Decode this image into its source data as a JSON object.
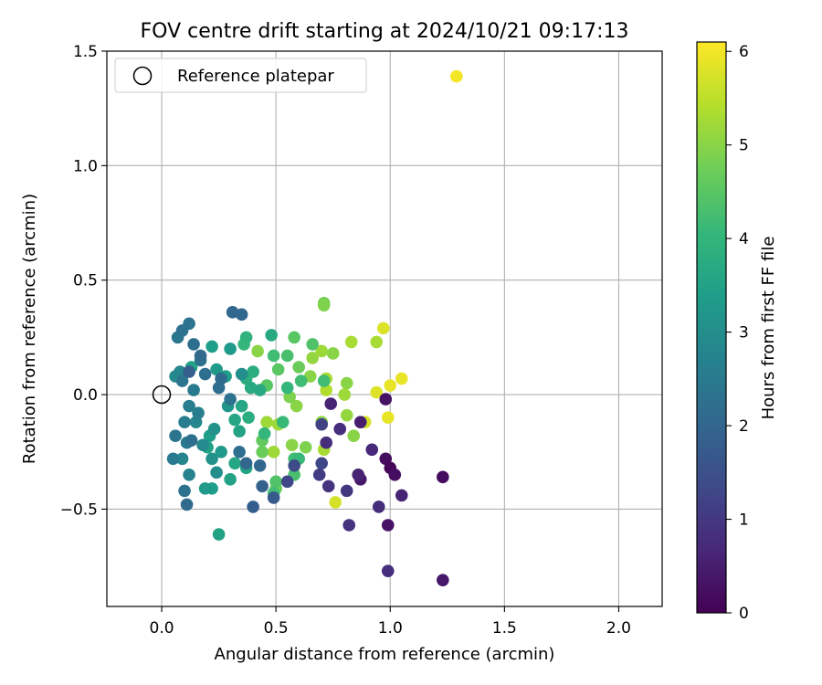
{
  "chart_data": {
    "type": "scatter",
    "title": "FOV centre drift starting at 2024/10/21 09:17:13",
    "xlabel": "Angular distance from reference (arcmin)",
    "ylabel": "Rotation from reference (arcmin)",
    "xlim": [
      -0.24,
      2.19
    ],
    "ylim": [
      -0.925,
      1.5
    ],
    "xticks": [
      0.0,
      0.5,
      1.0,
      1.5,
      2.0
    ],
    "xtick_labels": [
      "0.0",
      "0.5",
      "1.0",
      "1.5",
      "2.0"
    ],
    "yticks": [
      -0.5,
      0.0,
      0.5,
      1.0,
      1.5
    ],
    "ytick_labels": [
      "−0.5",
      "0.0",
      "0.5",
      "1.0",
      "1.5"
    ],
    "grid": true,
    "legend": {
      "placement": "upper-left",
      "entries": [
        "Reference platepar"
      ]
    },
    "reference_point": {
      "x": 0.0,
      "y": 0.0
    },
    "colorbar": {
      "label": "Hours from first FF file",
      "colormap": "viridis",
      "range": [
        0,
        6.1
      ],
      "ticks": [
        0,
        1,
        2,
        3,
        4,
        5,
        6
      ],
      "tick_labels": [
        "0",
        "1",
        "2",
        "3",
        "4",
        "5",
        "6"
      ],
      "stops": [
        "#440154",
        "#482878",
        "#3e4a89",
        "#31688e",
        "#26828e",
        "#1f9e89",
        "#35b779",
        "#6ece58",
        "#b5de2b",
        "#fde725"
      ]
    },
    "points": [
      [
        1.29,
        1.39,
        6.0
      ],
      [
        0.97,
        0.29,
        5.8
      ],
      [
        1.05,
        0.07,
        5.9
      ],
      [
        1.0,
        0.04,
        5.9
      ],
      [
        0.94,
        0.01,
        5.8
      ],
      [
        0.99,
        -0.1,
        5.9
      ],
      [
        0.89,
        -0.12,
        5.7
      ],
      [
        0.86,
        -0.35,
        5.8
      ],
      [
        0.76,
        -0.47,
        5.7
      ],
      [
        0.94,
        0.23,
        5.3
      ],
      [
        0.83,
        0.23,
        5.3
      ],
      [
        0.72,
        0.02,
        5.4
      ],
      [
        0.72,
        0.07,
        5.3
      ],
      [
        0.7,
        0.19,
        5.2
      ],
      [
        0.66,
        0.16,
        5.1
      ],
      [
        0.71,
        0.4,
        4.8
      ],
      [
        0.71,
        0.39,
        4.9
      ],
      [
        0.75,
        0.18,
        5.0
      ],
      [
        0.65,
        0.08,
        5.0
      ],
      [
        0.81,
        0.05,
        5.0
      ],
      [
        0.8,
        0.0,
        5.2
      ],
      [
        0.81,
        -0.09,
        5.1
      ],
      [
        0.7,
        -0.12,
        5.0
      ],
      [
        0.84,
        -0.18,
        5.0
      ],
      [
        0.71,
        -0.24,
        5.3
      ],
      [
        0.59,
        -0.05,
        5.0
      ],
      [
        0.56,
        -0.01,
        4.9
      ],
      [
        0.51,
        -0.13,
        5.2
      ],
      [
        0.57,
        -0.22,
        5.0
      ],
      [
        0.63,
        -0.23,
        4.9
      ],
      [
        0.49,
        -0.25,
        5.2
      ],
      [
        0.46,
        -0.12,
        5.2
      ],
      [
        0.42,
        0.19,
        5.0
      ],
      [
        0.44,
        -0.25,
        4.7
      ],
      [
        0.44,
        -0.2,
        4.6
      ],
      [
        0.5,
        -0.41,
        4.7
      ],
      [
        0.51,
        0.11,
        4.5
      ],
      [
        0.6,
        0.12,
        4.7
      ],
      [
        0.58,
        0.25,
        4.5
      ],
      [
        0.66,
        0.22,
        4.4
      ],
      [
        0.71,
        0.06,
        4.2
      ],
      [
        0.61,
        0.06,
        4.2
      ],
      [
        0.55,
        0.17,
        4.3
      ],
      [
        0.46,
        0.04,
        4.5
      ],
      [
        0.49,
        0.17,
        4.2
      ],
      [
        0.5,
        -0.38,
        4.4
      ],
      [
        0.58,
        -0.35,
        4.3
      ],
      [
        0.58,
        -0.28,
        4.2
      ],
      [
        0.6,
        -0.28,
        4.1
      ],
      [
        0.49,
        -0.43,
        4.2
      ],
      [
        0.55,
        0.03,
        4.0
      ],
      [
        0.53,
        -0.12,
        4.1
      ],
      [
        0.45,
        -0.17,
        4.0
      ],
      [
        0.37,
        0.25,
        3.9
      ],
      [
        0.36,
        0.22,
        4.0
      ],
      [
        0.37,
        0.07,
        3.8
      ],
      [
        0.39,
        0.03,
        3.7
      ],
      [
        0.4,
        0.1,
        3.8
      ],
      [
        0.48,
        0.26,
        3.7
      ],
      [
        0.43,
        0.02,
        3.7
      ],
      [
        0.35,
        -0.05,
        3.6
      ],
      [
        0.38,
        -0.1,
        3.8
      ],
      [
        0.32,
        -0.11,
        3.6
      ],
      [
        0.34,
        -0.16,
        3.5
      ],
      [
        0.32,
        -0.3,
        3.6
      ],
      [
        0.37,
        -0.32,
        3.5
      ],
      [
        0.3,
        -0.37,
        3.5
      ],
      [
        0.25,
        -0.61,
        3.5
      ],
      [
        0.22,
        -0.41,
        3.4
      ],
      [
        0.19,
        -0.41,
        3.3
      ],
      [
        0.21,
        -0.18,
        3.4
      ],
      [
        0.2,
        -0.23,
        3.5
      ],
      [
        0.13,
        0.12,
        3.5
      ],
      [
        0.22,
        0.21,
        3.4
      ],
      [
        0.24,
        0.11,
        3.3
      ],
      [
        0.29,
        -0.05,
        3.2
      ],
      [
        0.28,
        0.08,
        3.4
      ],
      [
        0.3,
        0.2,
        3.3
      ],
      [
        0.35,
        0.09,
        3.0
      ],
      [
        0.23,
        -0.15,
        3.1
      ],
      [
        0.26,
        -0.25,
        3.3
      ],
      [
        0.22,
        -0.28,
        3.1
      ],
      [
        0.24,
        -0.34,
        3.0
      ],
      [
        0.18,
        -0.22,
        2.9
      ],
      [
        0.15,
        -0.12,
        2.8
      ],
      [
        0.12,
        -0.35,
        2.7
      ],
      [
        0.09,
        -0.28,
        2.8
      ],
      [
        0.06,
        0.08,
        2.9
      ],
      [
        0.08,
        0.1,
        2.8
      ],
      [
        0.1,
        -0.12,
        2.6
      ],
      [
        0.12,
        -0.05,
        2.6
      ],
      [
        0.14,
        0.02,
        2.5
      ],
      [
        0.16,
        -0.08,
        2.6
      ],
      [
        0.11,
        -0.21,
        2.5
      ],
      [
        0.05,
        -0.28,
        2.5
      ],
      [
        0.06,
        -0.18,
        2.4
      ],
      [
        0.09,
        0.06,
        2.4
      ],
      [
        0.07,
        0.25,
        2.4
      ],
      [
        0.09,
        0.28,
        2.3
      ],
      [
        0.12,
        0.31,
        2.3
      ],
      [
        0.14,
        0.22,
        2.2
      ],
      [
        0.17,
        0.15,
        2.3
      ],
      [
        0.17,
        0.17,
        2.1
      ],
      [
        0.19,
        0.09,
        2.2
      ],
      [
        0.26,
        0.07,
        2.1
      ],
      [
        0.31,
        0.36,
        2.0
      ],
      [
        0.35,
        0.35,
        2.0
      ],
      [
        0.25,
        0.03,
        2.2
      ],
      [
        0.3,
        -0.02,
        2.3
      ],
      [
        0.34,
        -0.25,
        2.2
      ],
      [
        0.37,
        -0.3,
        2.0
      ],
      [
        0.43,
        -0.31,
        2.0
      ],
      [
        0.44,
        -0.4,
        1.9
      ],
      [
        0.4,
        -0.49,
        1.8
      ],
      [
        0.1,
        -0.42,
        2.3
      ],
      [
        0.11,
        -0.48,
        2.1
      ],
      [
        0.13,
        -0.2,
        2.2
      ],
      [
        0.12,
        0.1,
        1.8
      ],
      [
        0.49,
        -0.45,
        1.7
      ],
      [
        0.55,
        -0.38,
        1.3
      ],
      [
        0.58,
        -0.31,
        1.4
      ],
      [
        0.7,
        -0.13,
        1.2
      ],
      [
        0.7,
        -0.3,
        1.3
      ],
      [
        0.69,
        -0.35,
        1.1
      ],
      [
        0.73,
        -0.4,
        0.9
      ],
      [
        0.72,
        -0.21,
        0.8
      ],
      [
        0.74,
        -0.04,
        0.6
      ],
      [
        0.78,
        -0.15,
        0.8
      ],
      [
        0.81,
        -0.42,
        1.0
      ],
      [
        0.87,
        -0.12,
        0.5
      ],
      [
        0.87,
        -0.37,
        0.4
      ],
      [
        0.86,
        -0.35,
        0.6
      ],
      [
        0.82,
        -0.57,
        0.9
      ],
      [
        0.92,
        -0.24,
        0.7
      ],
      [
        0.95,
        -0.49,
        0.8
      ],
      [
        0.98,
        -0.02,
        0.3
      ],
      [
        0.98,
        -0.28,
        0.2
      ],
      [
        1.0,
        -0.32,
        0.1
      ],
      [
        1.02,
        -0.35,
        0.2
      ],
      [
        0.99,
        -0.57,
        0.3
      ],
      [
        1.05,
        -0.44,
        0.6
      ],
      [
        0.99,
        -0.77,
        0.8
      ],
      [
        1.23,
        -0.36,
        0.2
      ],
      [
        1.23,
        -0.81,
        0.4
      ]
    ]
  }
}
